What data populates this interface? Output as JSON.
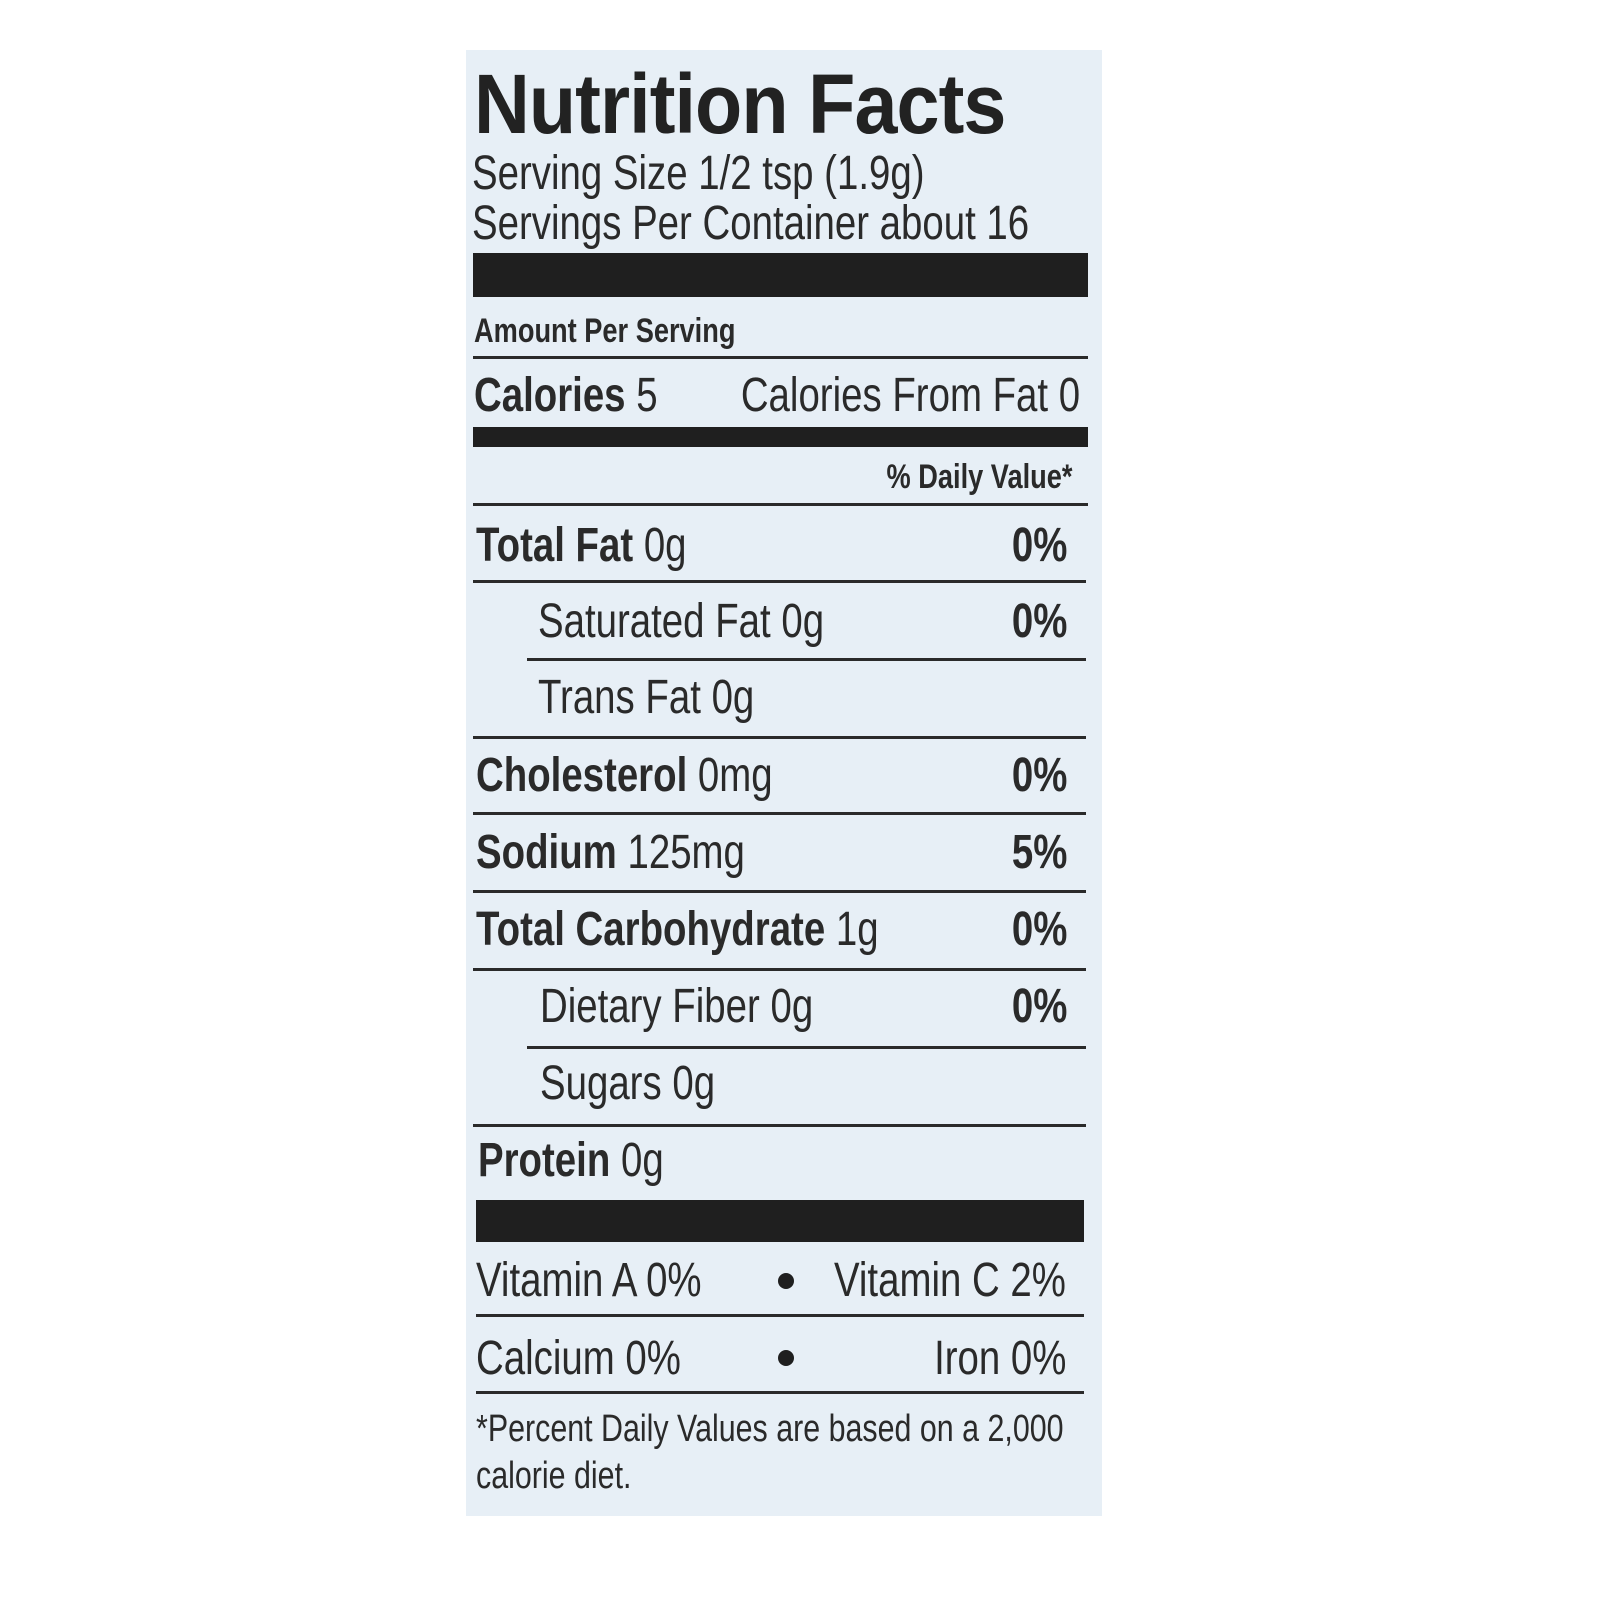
{
  "title": "Nutrition Facts",
  "serving_size": "Serving Size 1/2 tsp (1.9g)",
  "servings_per_container": "Servings Per Container about 16",
  "amount_per_serving": "Amount Per Serving",
  "calories": {
    "label": "Calories",
    "value": "5",
    "from_fat": "Calories From Fat 0"
  },
  "daily_value_header": "% Daily Value*",
  "nutrients": [
    {
      "label": "Total Fat",
      "amount": "0g",
      "dv": "0%"
    },
    {
      "label": "Saturated Fat",
      "amount": "0g",
      "dv": "0%"
    },
    {
      "label": "Trans Fat",
      "amount": "0g",
      "dv": ""
    },
    {
      "label": "Cholesterol",
      "amount": "0mg",
      "dv": "0%"
    },
    {
      "label": "Sodium",
      "amount": "125mg",
      "dv": "5%"
    },
    {
      "label": "Total Carbohydrate",
      "amount": "1g",
      "dv": "0%"
    },
    {
      "label": "Dietary Fiber",
      "amount": "0g",
      "dv": "0%"
    },
    {
      "label": "Sugars",
      "amount": "0g",
      "dv": ""
    },
    {
      "label": "Protein",
      "amount": "0g",
      "dv": ""
    }
  ],
  "vitamins": {
    "vitamin_a": "Vitamin A 0%",
    "vitamin_c": "Vitamin C 2%",
    "calcium": "Calcium 0%",
    "iron": "Iron 0%"
  },
  "footnote_line1": "*Percent Daily Values are based on a 2,000",
  "footnote_line2": "calorie diet.",
  "colors": {
    "label_background": "#e7eff6",
    "ink": "#1f1f1f"
  }
}
